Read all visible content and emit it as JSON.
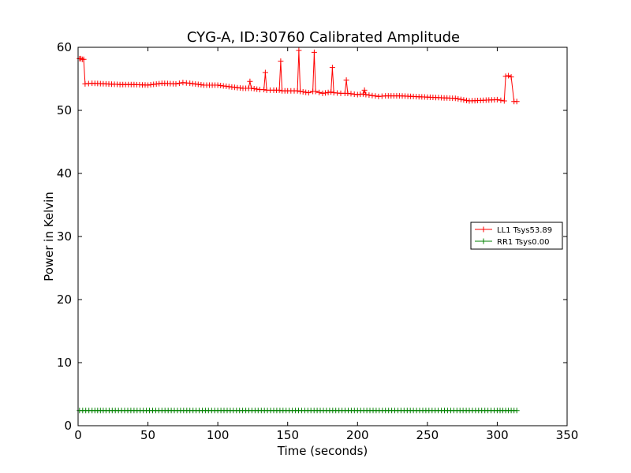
{
  "chart_data": {
    "type": "line",
    "title": "CYG-A, ID:30760 Calibrated Amplitude",
    "xlabel": "Time (seconds)",
    "ylabel": "Power in Kelvin",
    "xlim": [
      0,
      350
    ],
    "ylim": [
      0,
      60
    ],
    "xticks": [
      0,
      50,
      100,
      150,
      200,
      250,
      300,
      350
    ],
    "yticks": [
      0,
      10,
      20,
      30,
      40,
      50,
      60
    ],
    "grid": false,
    "legend_position": "right",
    "marker": "plus",
    "series": [
      {
        "name": "LL1 Tsys53.89",
        "color": "#ff0000",
        "points": [
          [
            1,
            58.2
          ],
          [
            2,
            58.2
          ],
          [
            3,
            58.1
          ],
          [
            4,
            58.1
          ],
          [
            5,
            54.2
          ],
          [
            10,
            54.3
          ],
          [
            20,
            54.2
          ],
          [
            30,
            54.1
          ],
          [
            40,
            54.1
          ],
          [
            50,
            54.0
          ],
          [
            60,
            54.3
          ],
          [
            70,
            54.2
          ],
          [
            75,
            54.4
          ],
          [
            80,
            54.3
          ],
          [
            90,
            54.0
          ],
          [
            100,
            54.0
          ],
          [
            110,
            53.7
          ],
          [
            118,
            53.5
          ],
          [
            122,
            53.5
          ],
          [
            123,
            54.6
          ],
          [
            124,
            53.5
          ],
          [
            130,
            53.3
          ],
          [
            133,
            53.3
          ],
          [
            134,
            56.0
          ],
          [
            135,
            53.2
          ],
          [
            140,
            53.2
          ],
          [
            144,
            53.2
          ],
          [
            145,
            57.8
          ],
          [
            146,
            53.1
          ],
          [
            150,
            53.1
          ],
          [
            157,
            53.1
          ],
          [
            158,
            59.5
          ],
          [
            159,
            53.0
          ],
          [
            165,
            52.8
          ],
          [
            168,
            53.0
          ],
          [
            169,
            59.2
          ],
          [
            170,
            53.0
          ],
          [
            175,
            52.7
          ],
          [
            181,
            52.9
          ],
          [
            182,
            56.8
          ],
          [
            183,
            52.8
          ],
          [
            188,
            52.7
          ],
          [
            191,
            52.7
          ],
          [
            192,
            54.8
          ],
          [
            193,
            52.7
          ],
          [
            200,
            52.5
          ],
          [
            204,
            52.6
          ],
          [
            205,
            53.2
          ],
          [
            206,
            52.5
          ],
          [
            215,
            52.2
          ],
          [
            220,
            52.3
          ],
          [
            230,
            52.3
          ],
          [
            240,
            52.2
          ],
          [
            250,
            52.1
          ],
          [
            260,
            52.0
          ],
          [
            270,
            51.9
          ],
          [
            280,
            51.5
          ],
          [
            290,
            51.6
          ],
          [
            300,
            51.7
          ],
          [
            305,
            51.5
          ],
          [
            306,
            55.4
          ],
          [
            308,
            55.5
          ],
          [
            310,
            55.3
          ],
          [
            312,
            51.4
          ],
          [
            314,
            51.4
          ]
        ]
      },
      {
        "name": "RR1 Tsys0.00",
        "color": "#008000",
        "points": [
          [
            1,
            2.4
          ],
          [
            10,
            2.4
          ],
          [
            20,
            2.4
          ],
          [
            40,
            2.4
          ],
          [
            60,
            2.4
          ],
          [
            80,
            2.4
          ],
          [
            100,
            2.4
          ],
          [
            120,
            2.4
          ],
          [
            140,
            2.4
          ],
          [
            160,
            2.4
          ],
          [
            180,
            2.4
          ],
          [
            200,
            2.4
          ],
          [
            220,
            2.4
          ],
          [
            240,
            2.4
          ],
          [
            260,
            2.4
          ],
          [
            280,
            2.4
          ],
          [
            300,
            2.4
          ],
          [
            310,
            2.4
          ],
          [
            314,
            2.4
          ]
        ]
      }
    ]
  }
}
